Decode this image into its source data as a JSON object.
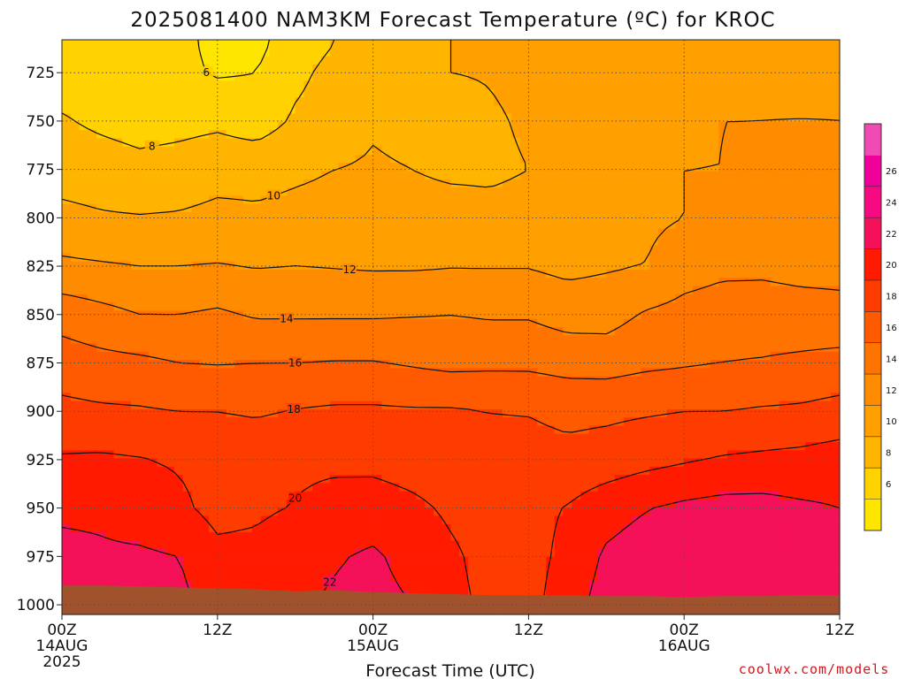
{
  "title": "2025081400 NAM3KM Forecast Temperature (ºC) for KROC",
  "credit": "coolwx.com/models",
  "colors": {
    "ground": "#a0522d",
    "levels": [
      {
        "t": 4,
        "color": "#ffe600"
      },
      {
        "t": 6,
        "color": "#ffd200"
      },
      {
        "t": 8,
        "color": "#ffb400"
      },
      {
        "t": 10,
        "color": "#ff9f00"
      },
      {
        "t": 12,
        "color": "#ff8c00"
      },
      {
        "t": 14,
        "color": "#ff7300"
      },
      {
        "t": 16,
        "color": "#ff5a00"
      },
      {
        "t": 18,
        "color": "#ff3c00"
      },
      {
        "t": 20,
        "color": "#ff1a00"
      },
      {
        "t": 22,
        "color": "#f5115a"
      },
      {
        "t": 24,
        "color": "#f50a82"
      },
      {
        "t": 26,
        "color": "#f0009a"
      },
      {
        "t": 28,
        "color": "#f04bb4"
      }
    ]
  },
  "chart_data": {
    "type": "heatmap",
    "title": "2025081400 NAM3KM Forecast Temperature (ºC) for KROC",
    "xlabel": "Forecast Time (UTC)",
    "ylabel": "",
    "x_hours": [
      0,
      3,
      6,
      9,
      12,
      15,
      18,
      21,
      24,
      27,
      30,
      33,
      36,
      39,
      42,
      45,
      48,
      51,
      54,
      57,
      60
    ],
    "y_pressure": [
      710,
      725,
      750,
      775,
      800,
      825,
      850,
      875,
      900,
      925,
      950,
      975,
      1000
    ],
    "ylim": [
      1005,
      708
    ],
    "xlim": [
      0,
      60
    ],
    "xticks": [
      {
        "hour": 0,
        "label": "00Z",
        "sub": "14AUG",
        "sub2": "2025"
      },
      {
        "hour": 12,
        "label": "12Z",
        "sub": "",
        "sub2": ""
      },
      {
        "hour": 24,
        "label": "00Z",
        "sub": "15AUG",
        "sub2": ""
      },
      {
        "hour": 36,
        "label": "12Z",
        "sub": "",
        "sub2": ""
      },
      {
        "hour": 48,
        "label": "00Z",
        "sub": "16AUG",
        "sub2": ""
      },
      {
        "hour": 60,
        "label": "12Z",
        "sub": "",
        "sub2": ""
      }
    ],
    "yticks": [
      725,
      750,
      775,
      800,
      825,
      850,
      875,
      900,
      925,
      950,
      975,
      1000
    ],
    "temperature_c": [
      [
        7.5,
        6.5,
        6.0,
        6.5,
        5.5,
        5.5,
        7.0,
        8.0,
        9.0,
        9.5,
        10.0,
        10.2,
        10.8,
        11.2,
        11.5,
        11.3,
        11.5,
        11.7,
        11.8,
        11.8,
        11.8
      ],
      [
        7.0,
        6.8,
        6.3,
        6.5,
        5.8,
        6.0,
        7.5,
        8.6,
        9.4,
        9.8,
        10.0,
        10.1,
        10.4,
        11.4,
        11.6,
        11.6,
        11.7,
        11.8,
        11.9,
        11.9,
        11.9
      ],
      [
        8.2,
        7.6,
        7.2,
        7.4,
        7.6,
        7.0,
        8.3,
        9.0,
        9.8,
        9.5,
        9.3,
        9.8,
        10.2,
        11.0,
        11.4,
        11.7,
        11.9,
        12.0,
        12.0,
        12.0,
        12.0
      ],
      [
        9.2,
        9.0,
        8.6,
        8.8,
        9.3,
        9.4,
        9.7,
        10.0,
        10.2,
        10.0,
        9.7,
        9.7,
        10.0,
        10.5,
        11.2,
        11.6,
        12.0,
        12.0,
        12.2,
        12.6,
        12.2
      ],
      [
        10.5,
        10.2,
        10.1,
        10.2,
        10.5,
        10.3,
        10.5,
        10.6,
        10.6,
        10.7,
        10.7,
        10.5,
        10.6,
        10.8,
        11.3,
        11.6,
        12.0,
        12.3,
        12.5,
        12.5,
        12.5
      ],
      [
        12.4,
        12.2,
        12.0,
        12.0,
        12.1,
        11.9,
        12.0,
        11.9,
        11.8,
        11.8,
        11.9,
        11.9,
        11.9,
        11.5,
        11.8,
        12.0,
        13.2,
        13.6,
        13.8,
        13.7,
        13.7
      ],
      [
        15.2,
        14.6,
        14.0,
        14.0,
        14.3,
        13.8,
        13.8,
        13.8,
        13.8,
        13.9,
        14.0,
        13.8,
        13.8,
        13.2,
        13.2,
        14.2,
        14.6,
        14.9,
        14.5,
        14.4,
        14.3
      ],
      [
        17.0,
        16.6,
        16.4,
        16.0,
        15.9,
        16.0,
        16.0,
        16.1,
        16.1,
        15.8,
        15.5,
        15.6,
        15.6,
        15.3,
        15.2,
        15.6,
        15.8,
        16.0,
        16.2,
        16.5,
        16.8
      ],
      [
        18.5,
        18.3,
        18.2,
        18.0,
        18.0,
        17.8,
        18.1,
        18.3,
        18.3,
        18.2,
        18.2,
        18.0,
        17.9,
        17.5,
        17.6,
        17.8,
        18.0,
        18.0,
        18.2,
        18.3,
        18.6
      ],
      [
        20.2,
        20.3,
        20.1,
        19.8,
        19.4,
        19.2,
        19.6,
        19.6,
        19.5,
        19.2,
        19.0,
        18.8,
        18.8,
        18.6,
        18.9,
        19.4,
        19.8,
        20.2,
        20.4,
        20.6,
        21.0
      ],
      [
        21.6,
        21.6,
        21.0,
        20.4,
        19.4,
        19.7,
        20.1,
        20.7,
        20.9,
        20.4,
        19.7,
        19.2,
        19.4,
        20.1,
        21.2,
        21.9,
        22.4,
        22.7,
        22.7,
        22.3,
        22.0
      ],
      [
        22.6,
        22.3,
        22.3,
        22.0,
        20.5,
        20.5,
        21.2,
        21.8,
        22.3,
        21.3,
        20.3,
        19.4,
        19.2,
        20.6,
        22.3,
        23.0,
        23.5,
        23.7,
        23.8,
        23.1,
        22.6
      ],
      [
        22.9,
        22.9,
        22.7,
        22.6,
        21.0,
        21.0,
        21.7,
        22.3,
        22.7,
        22.0,
        20.5,
        19.6,
        19.3,
        21.2,
        22.8,
        23.4,
        23.8,
        23.9,
        24.0,
        23.3,
        22.9
      ]
    ],
    "contour_levels": [
      6,
      8,
      10,
      12,
      14,
      16,
      18,
      20,
      22
    ],
    "surface_pressure": [
      990,
      990,
      990.5,
      991,
      991.5,
      992,
      993,
      992.5,
      993.5,
      994,
      994.5,
      995,
      995,
      995,
      995.5,
      995.5,
      996,
      995.5,
      995.5,
      995,
      995
    ],
    "colorbar_ticks": [
      6,
      8,
      10,
      12,
      14,
      16,
      18,
      20,
      22,
      24,
      26
    ],
    "grid": true,
    "legend_position": "right"
  }
}
